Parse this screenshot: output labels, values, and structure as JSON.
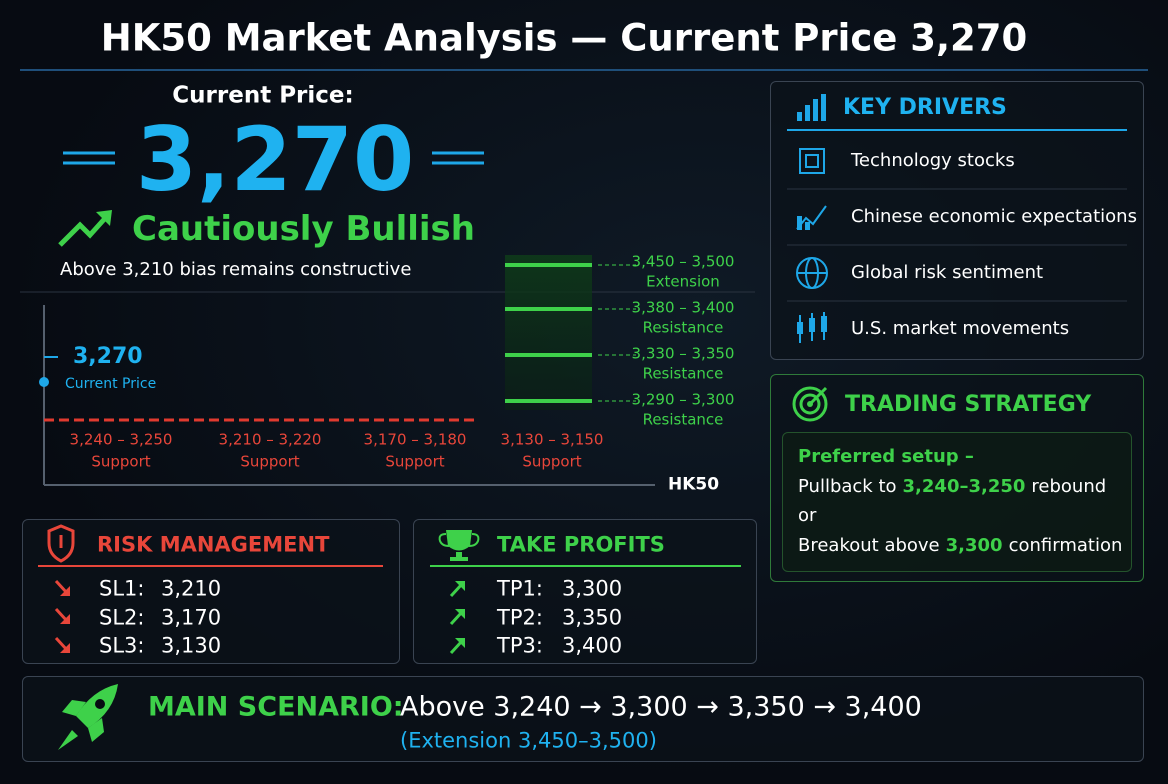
{
  "header": {
    "title": "HK50 Market Analysis — Current Price 3,270"
  },
  "price": {
    "label": "Current Price:",
    "value": "3,270",
    "bias": "Cautiously Bullish",
    "note": "Above 3,210 bias remains constructive"
  },
  "levels_chart": {
    "current": {
      "value": "3,270",
      "label": "Current Price"
    },
    "support": [
      {
        "range": "3,240 – 3,250",
        "label": "Support"
      },
      {
        "range": "3,210 – 3,220",
        "label": "Support"
      },
      {
        "range": "3,170 – 3,180",
        "label": "Support"
      },
      {
        "range": "3,130 – 3,150",
        "label": "Support"
      }
    ],
    "upper": [
      {
        "range": "3,450 – 3,500",
        "label": "Extension"
      },
      {
        "range": "3,380 – 3,400",
        "label": "Resistance"
      },
      {
        "range": "3,330 – 3,350",
        "label": "Resistance"
      },
      {
        "range": "3,290 – 3,300",
        "label": "Resistance"
      }
    ],
    "symbol": "HK50"
  },
  "key_drivers": {
    "title": "KEY DRIVERS",
    "items": [
      "Technology stocks",
      "Chinese economic expectations",
      "Global risk sentiment",
      "U.S. market movements"
    ]
  },
  "trading_strategy": {
    "title": "TRADING STRATEGY",
    "heading": "Preferred setup –",
    "lines": [
      {
        "pre": "Pullback to",
        "highlight": "3,240–3,250",
        "post": "rebound"
      },
      {
        "pre": "or"
      },
      {
        "pre": "Breakout above",
        "highlight": "3,300",
        "post": "confirmation"
      }
    ]
  },
  "risk_management": {
    "title": "RISK MANAGEMENT",
    "items": [
      {
        "label": "SL1:",
        "value": "3,210"
      },
      {
        "label": "SL2:",
        "value": "3,170"
      },
      {
        "label": "SL3:",
        "value": "3,130"
      }
    ]
  },
  "take_profits": {
    "title": "TAKE PROFITS",
    "items": [
      {
        "label": "TP1:",
        "value": "3,300"
      },
      {
        "label": "TP2:",
        "value": "3,350"
      },
      {
        "label": "TP3:",
        "value": "3,400"
      }
    ]
  },
  "main_scenario": {
    "label": "MAIN SCENARIO:",
    "path": "Above 3,240 → 3,300 → 3,350 → 3,400",
    "extension": "(Extension 3,450–3,500)"
  }
}
